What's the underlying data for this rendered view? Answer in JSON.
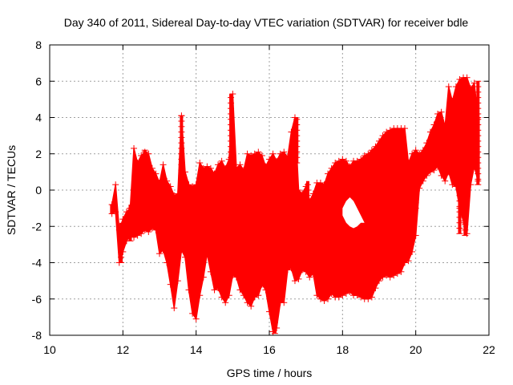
{
  "chart_data": {
    "type": "scatter",
    "title": "Day 340 of 2011, Sidereal Day-to-day VTEC variation (SDTVAR) for receiver bdle",
    "xlabel": "GPS time / hours",
    "ylabel": "SDTVAR / TECUs",
    "xlim": [
      10,
      22
    ],
    "ylim": [
      -8,
      8
    ],
    "xticks": [
      "10",
      "12",
      "14",
      "16",
      "18",
      "20",
      "22"
    ],
    "yticks": [
      "-8",
      "-6",
      "-4",
      "-2",
      "0",
      "2",
      "4",
      "6",
      "8"
    ],
    "grid": true,
    "series_color": "#ff0000",
    "series": [
      {
        "name": "SDTVAR",
        "marker": "plus-with-errorbar",
        "envelope": {
          "x": [
            11.7,
            11.8,
            11.9,
            12.0,
            12.1,
            12.2,
            12.3,
            12.4,
            12.5,
            12.6,
            12.7,
            12.8,
            12.9,
            13.0,
            13.1,
            13.2,
            13.3,
            13.4,
            13.5,
            13.6,
            13.7,
            13.8,
            13.9,
            14.0,
            14.1,
            14.2,
            14.3,
            14.4,
            14.5,
            14.6,
            14.7,
            14.8,
            14.9,
            15.0,
            15.1,
            15.2,
            15.3,
            15.4,
            15.5,
            15.6,
            15.7,
            15.8,
            15.9,
            16.0,
            16.1,
            16.2,
            16.3,
            16.4,
            16.5,
            16.6,
            16.7,
            16.8,
            16.9,
            17.0,
            17.1,
            17.2,
            17.3,
            17.4,
            17.5,
            17.6,
            17.7,
            17.8,
            17.9,
            18.0,
            18.1,
            18.2,
            18.3,
            18.4,
            18.5,
            18.6,
            18.7,
            18.8,
            18.9,
            19.0,
            19.1,
            19.2,
            19.3,
            19.4,
            19.5,
            19.6,
            19.7,
            19.8,
            19.9,
            20.0,
            20.1,
            20.2,
            20.3,
            20.4,
            20.5,
            20.6,
            20.7,
            20.8,
            20.9,
            21.0,
            21.1,
            21.2,
            21.3,
            21.4,
            21.5,
            21.6,
            21.7
          ],
          "upper": [
            -0.8,
            0.3,
            -2.2,
            -1.6,
            -1.2,
            -1.0,
            2.3,
            1.5,
            1.9,
            2.1,
            2.0,
            1.2,
            0.9,
            0.4,
            1.4,
            0.5,
            0.2,
            -0.3,
            -0.2,
            4.1,
            1.0,
            0.3,
            0.2,
            0.3,
            1.5,
            1.2,
            1.3,
            1.2,
            0.9,
            1.4,
            1.6,
            1.2,
            1.7,
            5.3,
            1.2,
            1.4,
            1.1,
            2.0,
            1.9,
            2.0,
            2.1,
            1.9,
            1.3,
            1.7,
            2.0,
            1.6,
            2.0,
            2.1,
            1.8,
            3.2,
            4.0,
            0.0,
            -0.2,
            0.2,
            -0.6,
            -0.2,
            0.4,
            0.4,
            0.3,
            0.9,
            1.2,
            1.5,
            1.6,
            1.7,
            1.6,
            1.3,
            1.6,
            1.6,
            1.7,
            1.9,
            2.0,
            2.2,
            2.4,
            2.7,
            3.0,
            3.2,
            3.3,
            3.4,
            3.4,
            3.4,
            3.4,
            1.5,
            2.0,
            2.2,
            2.0,
            2.2,
            2.6,
            3.2,
            3.6,
            4.2,
            4.3,
            3.5,
            5.7,
            4.9,
            5.7,
            6.1,
            6.2,
            6.2,
            5.6,
            5.9,
            4.0
          ],
          "lower": [
            -1.3,
            -1.2,
            -4.0,
            -3.4,
            -2.8,
            -2.5,
            -2.6,
            -2.5,
            -2.4,
            -2.2,
            -2.3,
            -2.1,
            -2.2,
            -3.5,
            -3.3,
            -4.0,
            -5.2,
            -6.5,
            -5.0,
            -3.3,
            -3.7,
            -5.5,
            -6.8,
            -7.1,
            -5.8,
            -4.8,
            -3.5,
            -4.5,
            -5.5,
            -5.4,
            -5.9,
            -6.2,
            -5.8,
            -4.7,
            -4.8,
            -5.5,
            -5.8,
            -6.2,
            -6.4,
            -5.9,
            -5.8,
            -5.2,
            -5.5,
            -6.7,
            -7.8,
            -7.6,
            -6.2,
            -6.2,
            -4.4,
            -4.3,
            -5.0,
            -4.9,
            -4.4,
            -4.5,
            -4.8,
            -4.6,
            -5.8,
            -6.0,
            -6.1,
            -6.0,
            -5.7,
            -5.9,
            -5.9,
            -5.8,
            -5.7,
            -5.6,
            -5.8,
            -5.8,
            -5.9,
            -6.0,
            -6.0,
            -5.9,
            -5.4,
            -5.0,
            -4.8,
            -4.7,
            -4.8,
            -4.7,
            -4.6,
            -4.5,
            -4.0,
            -3.9,
            -3.4,
            -2.5,
            0.1,
            0.5,
            0.8,
            1.0,
            1.1,
            1.3,
            0.8,
            0.5,
            1.0,
            0.3,
            0.2,
            -1.0,
            -1.7,
            -2.4,
            0.3,
            1.3,
            0.5
          ]
        },
        "hole": {
          "x": [
            18.0,
            18.1,
            18.2,
            18.3,
            18.4,
            18.5,
            18.6
          ],
          "upper": [
            -1.0,
            -0.6,
            -0.4,
            -0.6,
            -1.0,
            -1.4,
            -1.8
          ],
          "lower": [
            -1.4,
            -1.8,
            -2.0,
            -2.1,
            -2.0,
            -1.8,
            -1.8
          ]
        },
        "spikes": [
          {
            "x": 11.95,
            "top": -1.8,
            "bottom": -4.0
          },
          {
            "x": 12.2,
            "top": -0.8,
            "bottom": -2.8
          },
          {
            "x": 12.6,
            "top": 2.2,
            "bottom": -0.8
          },
          {
            "x": 13.6,
            "top": 4.1,
            "bottom": -1.0
          },
          {
            "x": 14.95,
            "top": 5.3,
            "bottom": 0.0
          },
          {
            "x": 16.15,
            "top": -5.0,
            "bottom": -7.9
          },
          {
            "x": 16.75,
            "top": 4.0,
            "bottom": 1.5
          },
          {
            "x": 17.05,
            "top": 0.5,
            "bottom": -1.5
          },
          {
            "x": 20.0,
            "top": 2.0,
            "bottom": -1.0
          },
          {
            "x": 21.2,
            "top": 0.5,
            "bottom": -2.4
          },
          {
            "x": 21.35,
            "top": 0.0,
            "bottom": -2.5
          },
          {
            "x": 21.7,
            "top": 6.0,
            "bottom": 0.3
          }
        ]
      }
    ]
  }
}
